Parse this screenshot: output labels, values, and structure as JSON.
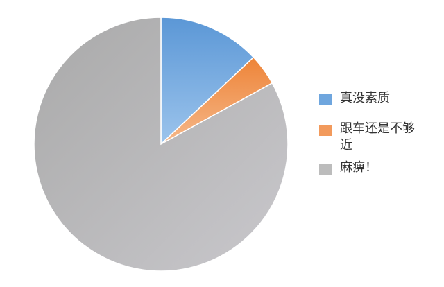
{
  "chart_data": {
    "type": "pie",
    "categories": [
      "真没素质",
      "跟车还是不够近",
      "麻痹！"
    ],
    "values": [
      13,
      4,
      83
    ],
    "colors": [
      "#6fa6de",
      "#f29a5c",
      "#bcbcbc"
    ],
    "legend_position": "right",
    "start_angle": "top, clockwise"
  }
}
